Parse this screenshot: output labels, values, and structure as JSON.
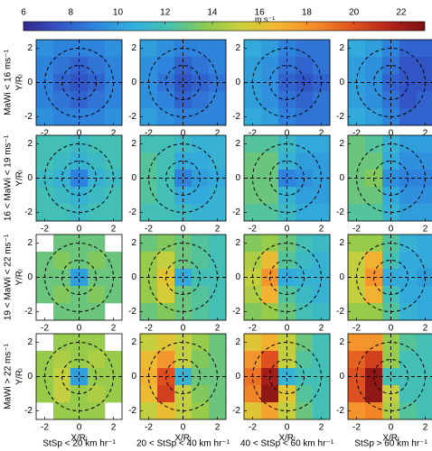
{
  "chart_data": {
    "type": "heatmap",
    "colorbar_label": "m s⁻¹",
    "clim": [
      6,
      23
    ],
    "cticks": [
      6,
      8,
      10,
      12,
      14,
      16,
      18,
      20,
      22
    ],
    "colormap": [
      "#35288f",
      "#3256c8",
      "#2e86dd",
      "#33aedc",
      "#45c1b0",
      "#8cc94f",
      "#cfd03a",
      "#f2b632",
      "#f58a2a",
      "#e0531f",
      "#b8251c",
      "#7c1012"
    ],
    "xlim": [
      -2.5,
      2.5
    ],
    "ylim": [
      -2.5,
      2.5
    ],
    "xticks": [
      -2,
      0,
      2
    ],
    "yticks": [
      -2,
      0,
      2
    ],
    "x_label": "X/Rₗ",
    "y_label": "Y/Rₗ",
    "row_labels": [
      "MaWi < 16 ms⁻¹",
      "16 < MaWi < 19 ms⁻¹",
      "19 < MaWi < 22 ms⁻¹",
      "MaWi > 22 ms⁻¹"
    ],
    "col_labels": [
      "StSp < 20 km hr⁻¹",
      "20 < StSp < 40 km hr⁻¹",
      "40 < StSp < 60 km hr⁻¹",
      "StSp > 60 km hr⁻¹"
    ],
    "x": [
      -2,
      -1,
      0,
      1,
      2
    ],
    "y": [
      2,
      1,
      0,
      -1,
      -2
    ],
    "grid": true,
    "panels": [
      [
        [
          [
            9.5,
            9,
            9,
            9,
            9.5
          ],
          [
            9,
            8.5,
            8,
            8.5,
            9
          ],
          [
            9,
            8,
            7.5,
            8,
            9
          ],
          [
            9,
            8.5,
            8,
            8.5,
            9
          ],
          [
            9.5,
            9,
            9,
            9,
            9.5
          ]
        ],
        [
          [
            10,
            9.5,
            9,
            9,
            9
          ],
          [
            9.5,
            9,
            8,
            8.5,
            9
          ],
          [
            9.5,
            8.5,
            7.5,
            8,
            8.5
          ],
          [
            9.5,
            9,
            8,
            8.5,
            9
          ],
          [
            10,
            9.5,
            9,
            9,
            9
          ]
        ],
        [
          [
            10.5,
            10,
            9,
            8.5,
            8.5
          ],
          [
            10,
            9.5,
            8.5,
            8,
            8.5
          ],
          [
            10,
            9.5,
            8,
            7.5,
            8
          ],
          [
            10,
            9.5,
            8.5,
            8,
            8.5
          ],
          [
            10.5,
            10,
            9,
            8.5,
            8.5
          ]
        ],
        [
          [
            10.5,
            10,
            9,
            8,
            8
          ],
          [
            10,
            9.5,
            8.5,
            7.5,
            7.5
          ],
          [
            10,
            9.5,
            8,
            7.5,
            7.5
          ],
          [
            10,
            9.5,
            8.5,
            7.5,
            8
          ],
          [
            10.5,
            10,
            9,
            8,
            8
          ]
        ]
      ],
      [
        [
          [
            12,
            12,
            11.5,
            12,
            12
          ],
          [
            12,
            11.5,
            11,
            11.5,
            12
          ],
          [
            11.5,
            11,
            9,
            11,
            11.5
          ],
          [
            12,
            11.5,
            11,
            11.5,
            12
          ],
          [
            12,
            12,
            11.5,
            12,
            12
          ]
        ],
        [
          [
            12,
            12,
            11.5,
            11,
            11
          ],
          [
            12.5,
            12,
            10.5,
            10.5,
            11
          ],
          [
            12.5,
            12,
            9,
            10,
            10.5
          ],
          [
            12.5,
            12,
            10.5,
            10.5,
            11
          ],
          [
            12,
            12,
            11.5,
            11,
            11
          ]
        ],
        [
          [
            12.5,
            12.5,
            11.5,
            10.5,
            10.5
          ],
          [
            13,
            13,
            11,
            10,
            10
          ],
          [
            13,
            13,
            9,
            9.5,
            10
          ],
          [
            13,
            13,
            11,
            10,
            10
          ],
          [
            12.5,
            12.5,
            11.5,
            10.5,
            10.5
          ]
        ],
        [
          [
            13,
            12.5,
            11,
            10,
            10
          ],
          [
            13,
            13,
            10.5,
            9.5,
            9.5
          ],
          [
            13,
            13.5,
            9.5,
            9,
            9
          ],
          [
            13,
            13,
            10.5,
            9.5,
            9.5
          ],
          [
            12.5,
            12.5,
            11,
            10,
            10
          ]
        ]
      ],
      [
        [
          [
            null,
            13,
            13,
            13,
            null
          ],
          [
            13,
            13.5,
            13,
            13.5,
            13
          ],
          [
            13,
            13,
            10,
            13,
            13
          ],
          [
            13,
            13.5,
            13,
            13.5,
            13
          ],
          [
            null,
            13,
            13,
            13,
            null
          ]
        ],
        [
          [
            13,
            13.5,
            13,
            12.5,
            12
          ],
          [
            14,
            15,
            13,
            12.5,
            12
          ],
          [
            14,
            16,
            10.5,
            12,
            12
          ],
          [
            14,
            15.5,
            13,
            12.5,
            12
          ],
          [
            13,
            13.5,
            13,
            12.5,
            12
          ]
        ],
        [
          [
            13.5,
            14,
            13,
            12,
            11.5
          ],
          [
            14.5,
            16.5,
            12.5,
            11.5,
            11
          ],
          [
            15,
            18,
            10.5,
            11,
            11
          ],
          [
            14.5,
            17,
            12.5,
            11.5,
            11
          ],
          [
            13.5,
            14,
            13,
            12,
            11.5
          ]
        ],
        [
          [
            14,
            14,
            12.5,
            11,
            10.5
          ],
          [
            15,
            17,
            12,
            10.5,
            10.5
          ],
          [
            15,
            18,
            10.5,
            10.5,
            10
          ],
          [
            15,
            17,
            12,
            10.5,
            10.5
          ],
          [
            14,
            14,
            12.5,
            11,
            10.5
          ]
        ]
      ],
      [
        [
          [
            null,
            14,
            14,
            14,
            null
          ],
          [
            14,
            14.5,
            14,
            14.5,
            14
          ],
          [
            14,
            15,
            10,
            14,
            14
          ],
          [
            14,
            15,
            14,
            14.5,
            14
          ],
          [
            null,
            14,
            14,
            14,
            null
          ]
        ],
        [
          [
            15,
            16,
            15,
            14,
            13
          ],
          [
            16.5,
            18,
            15,
            13.5,
            13
          ],
          [
            17,
            20,
            11,
            13,
            13
          ],
          [
            16.5,
            20.5,
            15,
            13.5,
            13
          ],
          [
            15,
            16.5,
            15,
            14,
            13
          ]
        ],
        [
          [
            16,
            17,
            15,
            13,
            12
          ],
          [
            18,
            20,
            15,
            12.5,
            12
          ],
          [
            19,
            22,
            11,
            12,
            12
          ],
          [
            18.5,
            22.5,
            16,
            12.5,
            12
          ],
          [
            16,
            17.5,
            15,
            13,
            12
          ]
        ],
        [
          [
            18,
            18,
            14,
            12.5,
            12
          ],
          [
            19.5,
            20.5,
            14,
            12,
            12
          ],
          [
            20,
            22.5,
            12,
            12,
            12
          ],
          [
            20,
            22.5,
            15,
            12,
            12
          ],
          [
            18,
            18.5,
            14.5,
            12.5,
            12
          ]
        ]
      ]
    ]
  }
}
